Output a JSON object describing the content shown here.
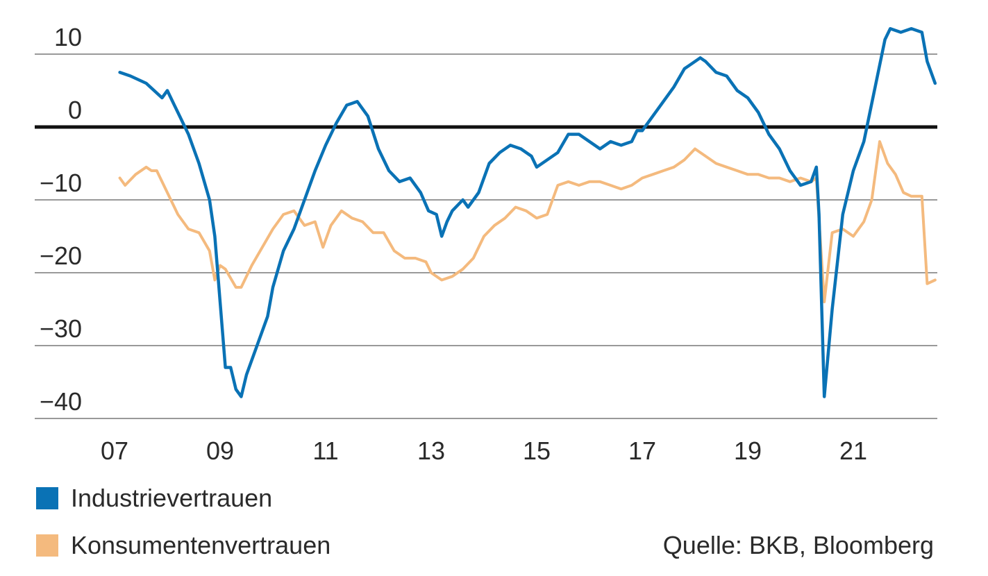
{
  "chart_data": {
    "type": "line",
    "title": "",
    "xlabel": "",
    "ylabel": "",
    "x_range": [
      2007.0,
      2022.6
    ],
    "ylim": [
      -40,
      10
    ],
    "y_ticks": [
      10,
      0,
      -10,
      -20,
      -30,
      -40
    ],
    "y_tick_labels": [
      "10",
      "0",
      "−10",
      "−20",
      "−30",
      "−40"
    ],
    "x_ticks": [
      2007,
      2009,
      2011,
      2013,
      2015,
      2017,
      2019,
      2021
    ],
    "x_tick_labels": [
      "07",
      "09",
      "11",
      "13",
      "15",
      "17",
      "19",
      "21"
    ],
    "zero_line": 0,
    "legend_position": "bottom-left",
    "series": [
      {
        "name": "Industrievertrauen",
        "color": "#0a72b5",
        "points": [
          [
            2007.1,
            7.5
          ],
          [
            2007.3,
            7.0
          ],
          [
            2007.6,
            6.0
          ],
          [
            2007.9,
            4.0
          ],
          [
            2008.0,
            5.0
          ],
          [
            2008.2,
            2.0
          ],
          [
            2008.4,
            -1.0
          ],
          [
            2008.6,
            -5.0
          ],
          [
            2008.8,
            -10.0
          ],
          [
            2008.9,
            -15.0
          ],
          [
            2009.0,
            -24.0
          ],
          [
            2009.1,
            -33.0
          ],
          [
            2009.2,
            -33.0
          ],
          [
            2009.3,
            -36.0
          ],
          [
            2009.4,
            -37.0
          ],
          [
            2009.5,
            -34.0
          ],
          [
            2009.7,
            -30.0
          ],
          [
            2009.9,
            -26.0
          ],
          [
            2010.0,
            -22.0
          ],
          [
            2010.2,
            -17.0
          ],
          [
            2010.4,
            -14.0
          ],
          [
            2010.6,
            -10.0
          ],
          [
            2010.8,
            -6.0
          ],
          [
            2011.0,
            -2.5
          ],
          [
            2011.2,
            0.5
          ],
          [
            2011.4,
            3.0
          ],
          [
            2011.6,
            3.5
          ],
          [
            2011.8,
            1.5
          ],
          [
            2012.0,
            -3.0
          ],
          [
            2012.2,
            -6.0
          ],
          [
            2012.4,
            -7.5
          ],
          [
            2012.6,
            -7.0
          ],
          [
            2012.8,
            -9.0
          ],
          [
            2012.95,
            -11.5
          ],
          [
            2013.1,
            -12.0
          ],
          [
            2013.2,
            -15.0
          ],
          [
            2013.3,
            -13.0
          ],
          [
            2013.4,
            -11.5
          ],
          [
            2013.6,
            -10.0
          ],
          [
            2013.7,
            -11.0
          ],
          [
            2013.9,
            -9.0
          ],
          [
            2014.1,
            -5.0
          ],
          [
            2014.3,
            -3.5
          ],
          [
            2014.5,
            -2.5
          ],
          [
            2014.7,
            -3.0
          ],
          [
            2014.9,
            -4.0
          ],
          [
            2015.0,
            -5.5
          ],
          [
            2015.2,
            -4.5
          ],
          [
            2015.4,
            -3.5
          ],
          [
            2015.6,
            -1.0
          ],
          [
            2015.8,
            -1.0
          ],
          [
            2016.0,
            -2.0
          ],
          [
            2016.2,
            -3.0
          ],
          [
            2016.4,
            -2.0
          ],
          [
            2016.6,
            -2.5
          ],
          [
            2016.8,
            -2.0
          ],
          [
            2016.9,
            -0.5
          ],
          [
            2017.0,
            -0.5
          ],
          [
            2017.2,
            1.5
          ],
          [
            2017.4,
            3.5
          ],
          [
            2017.6,
            5.5
          ],
          [
            2017.8,
            8.0
          ],
          [
            2017.9,
            8.5
          ],
          [
            2018.1,
            9.5
          ],
          [
            2018.2,
            9.0
          ],
          [
            2018.4,
            7.5
          ],
          [
            2018.6,
            7.0
          ],
          [
            2018.8,
            5.0
          ],
          [
            2019.0,
            4.0
          ],
          [
            2019.2,
            2.0
          ],
          [
            2019.4,
            -1.0
          ],
          [
            2019.6,
            -3.0
          ],
          [
            2019.8,
            -6.0
          ],
          [
            2020.0,
            -8.0
          ],
          [
            2020.2,
            -7.5
          ],
          [
            2020.3,
            -5.5
          ],
          [
            2020.35,
            -12.0
          ],
          [
            2020.45,
            -37.0
          ],
          [
            2020.6,
            -25.0
          ],
          [
            2020.8,
            -12.0
          ],
          [
            2021.0,
            -6.0
          ],
          [
            2021.2,
            -2.0
          ],
          [
            2021.4,
            5.0
          ],
          [
            2021.6,
            12.0
          ],
          [
            2021.7,
            13.5
          ],
          [
            2021.9,
            13.0
          ],
          [
            2022.1,
            13.5
          ],
          [
            2022.3,
            13.0
          ],
          [
            2022.4,
            9.0
          ],
          [
            2022.55,
            6.0
          ]
        ]
      },
      {
        "name": "Konsumentenvertrauen",
        "color": "#f4ba7e",
        "points": [
          [
            2007.1,
            -7.0
          ],
          [
            2007.2,
            -8.0
          ],
          [
            2007.4,
            -6.5
          ],
          [
            2007.6,
            -5.5
          ],
          [
            2007.7,
            -6.0
          ],
          [
            2007.8,
            -6.0
          ],
          [
            2008.0,
            -9.0
          ],
          [
            2008.2,
            -12.0
          ],
          [
            2008.4,
            -14.0
          ],
          [
            2008.6,
            -14.5
          ],
          [
            2008.8,
            -17.0
          ],
          [
            2008.9,
            -21.0
          ],
          [
            2009.0,
            -19.0
          ],
          [
            2009.1,
            -19.5
          ],
          [
            2009.3,
            -22.0
          ],
          [
            2009.4,
            -22.0
          ],
          [
            2009.6,
            -19.0
          ],
          [
            2009.8,
            -16.5
          ],
          [
            2010.0,
            -14.0
          ],
          [
            2010.2,
            -12.0
          ],
          [
            2010.4,
            -11.5
          ],
          [
            2010.6,
            -13.5
          ],
          [
            2010.8,
            -13.0
          ],
          [
            2010.95,
            -16.5
          ],
          [
            2011.1,
            -13.5
          ],
          [
            2011.3,
            -11.5
          ],
          [
            2011.5,
            -12.5
          ],
          [
            2011.7,
            -13.0
          ],
          [
            2011.9,
            -14.5
          ],
          [
            2012.1,
            -14.5
          ],
          [
            2012.3,
            -17.0
          ],
          [
            2012.5,
            -18.0
          ],
          [
            2012.7,
            -18.0
          ],
          [
            2012.9,
            -18.5
          ],
          [
            2013.0,
            -20.0
          ],
          [
            2013.2,
            -21.0
          ],
          [
            2013.4,
            -20.5
          ],
          [
            2013.6,
            -19.5
          ],
          [
            2013.8,
            -18.0
          ],
          [
            2014.0,
            -15.0
          ],
          [
            2014.2,
            -13.5
          ],
          [
            2014.4,
            -12.5
          ],
          [
            2014.6,
            -11.0
          ],
          [
            2014.8,
            -11.5
          ],
          [
            2015.0,
            -12.5
          ],
          [
            2015.2,
            -12.0
          ],
          [
            2015.4,
            -8.0
          ],
          [
            2015.6,
            -7.5
          ],
          [
            2015.8,
            -8.0
          ],
          [
            2016.0,
            -7.5
          ],
          [
            2016.2,
            -7.5
          ],
          [
            2016.4,
            -8.0
          ],
          [
            2016.6,
            -8.5
          ],
          [
            2016.8,
            -8.0
          ],
          [
            2017.0,
            -7.0
          ],
          [
            2017.2,
            -6.5
          ],
          [
            2017.4,
            -6.0
          ],
          [
            2017.6,
            -5.5
          ],
          [
            2017.8,
            -4.5
          ],
          [
            2018.0,
            -3.0
          ],
          [
            2018.2,
            -4.0
          ],
          [
            2018.4,
            -5.0
          ],
          [
            2018.6,
            -5.5
          ],
          [
            2018.8,
            -6.0
          ],
          [
            2019.0,
            -6.5
          ],
          [
            2019.2,
            -6.5
          ],
          [
            2019.4,
            -7.0
          ],
          [
            2019.6,
            -7.0
          ],
          [
            2019.8,
            -7.5
          ],
          [
            2020.0,
            -7.0
          ],
          [
            2020.2,
            -7.5
          ],
          [
            2020.3,
            -7.0
          ],
          [
            2020.45,
            -24.0
          ],
          [
            2020.6,
            -14.5
          ],
          [
            2020.8,
            -14.0
          ],
          [
            2021.0,
            -15.0
          ],
          [
            2021.2,
            -13.0
          ],
          [
            2021.35,
            -10.0
          ],
          [
            2021.5,
            -2.0
          ],
          [
            2021.65,
            -5.0
          ],
          [
            2021.8,
            -6.5
          ],
          [
            2021.95,
            -9.0
          ],
          [
            2022.1,
            -9.5
          ],
          [
            2022.3,
            -9.5
          ],
          [
            2022.4,
            -21.5
          ],
          [
            2022.55,
            -21.0
          ]
        ]
      }
    ],
    "source": "Quelle: BKB, Bloomberg"
  }
}
